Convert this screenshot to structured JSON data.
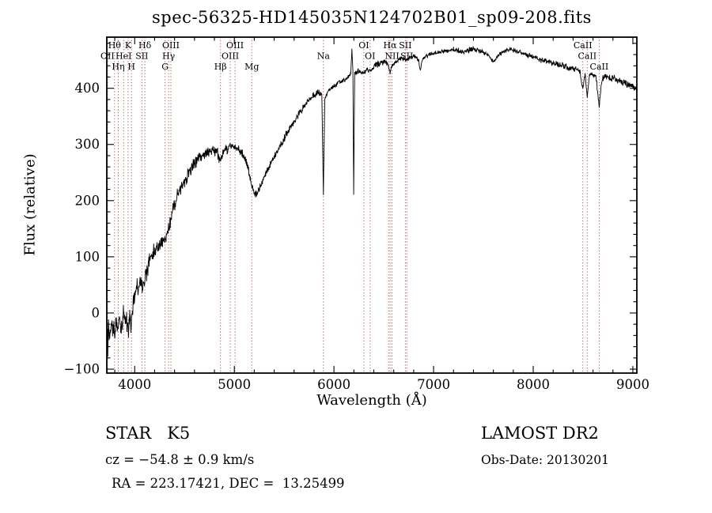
{
  "title": "spec-56325-HD145035N124702B01_sp09-208.fits",
  "footer": {
    "class_label": "STAR   K5",
    "survey": "LAMOST DR2",
    "cz": "cz = −54.8 ± 0.9 km/s",
    "obs_date": "Obs-Date: 20130201",
    "ra_dec": "RA = 223.17421, DEC =  13.25499"
  },
  "chart_data": {
    "type": "line",
    "title": "spec-56325-HD145035N124702B01_sp09-208.fits",
    "xlabel": "Wavelength (Å)",
    "ylabel": "Flux (relative)",
    "xlim": [
      3720,
      9040
    ],
    "ylim": [
      -107,
      491
    ],
    "grid": false,
    "line_color": "#000000",
    "marker_line_color": "#a34444",
    "x_ticks": {
      "major": [
        4000,
        5000,
        6000,
        7000,
        8000,
        9000
      ],
      "labels": [
        "4000",
        "5000",
        "6000",
        "7000",
        "8000",
        "9000"
      ],
      "minor_step": 200
    },
    "y_ticks": {
      "major": [
        -100,
        0,
        100,
        200,
        300,
        400
      ],
      "labels": [
        "−100",
        "0",
        "100",
        "200",
        "300",
        "400"
      ],
      "minor_step": 20
    },
    "spectral_lines": [
      {
        "label": "Hθ",
        "wavelength": 3798,
        "row": 1
      },
      {
        "label": "K",
        "wavelength": 3934,
        "row": 1
      },
      {
        "label": "Hδ",
        "wavelength": 4102,
        "row": 1
      },
      {
        "label": "OIII",
        "wavelength": 4363,
        "row": 1
      },
      {
        "label": "OIII",
        "wavelength": 5007,
        "row": 1
      },
      {
        "label": "OI",
        "wavelength": 6300,
        "row": 1
      },
      {
        "label": "Hα",
        "wavelength": 6563,
        "row": 1
      },
      {
        "label": "SII",
        "wavelength": 6716,
        "row": 1
      },
      {
        "label": "CaII",
        "wavelength": 8498,
        "row": 1
      },
      {
        "label": "OII",
        "wavelength": 3727,
        "row": 2
      },
      {
        "label": "HeI",
        "wavelength": 3889,
        "row": 2
      },
      {
        "label": "SII",
        "wavelength": 4072,
        "row": 2
      },
      {
        "label": "Hγ",
        "wavelength": 4340,
        "row": 2
      },
      {
        "label": "OIII",
        "wavelength": 4959,
        "row": 2
      },
      {
        "label": "Na",
        "wavelength": 5894,
        "row": 2
      },
      {
        "label": "OI",
        "wavelength": 6363,
        "row": 2
      },
      {
        "label": "NII",
        "wavelength": 6583,
        "row": 2
      },
      {
        "label": "SII",
        "wavelength": 6731,
        "row": 2
      },
      {
        "label": "CaII",
        "wavelength": 8542,
        "row": 2
      },
      {
        "label": "Hη",
        "wavelength": 3835,
        "row": 3
      },
      {
        "label": "H",
        "wavelength": 3968,
        "row": 3
      },
      {
        "label": "G",
        "wavelength": 4305,
        "row": 3
      },
      {
        "label": "Hβ",
        "wavelength": 4861,
        "row": 3
      },
      {
        "label": "Mg",
        "wavelength": 5175,
        "row": 3
      },
      {
        "label": "CaII",
        "wavelength": 8662,
        "row": 3
      },
      {
        "label": "",
        "wavelength": 6548,
        "row": 2
      }
    ],
    "series": [
      {
        "name": "spectrum",
        "point_format": "[wavelength_A, flux_relative, noise_amplitude]",
        "anchors": [
          [
            3690,
            -10,
            36
          ],
          [
            3698,
            -60,
            38
          ],
          [
            3706,
            -25,
            40
          ],
          [
            3714,
            -55,
            40
          ],
          [
            3722,
            -20,
            40
          ],
          [
            3730,
            -50,
            38
          ],
          [
            3740,
            -15,
            36
          ],
          [
            3750,
            -40,
            36
          ],
          [
            3762,
            -18,
            34
          ],
          [
            3775,
            -42,
            34
          ],
          [
            3788,
            -15,
            32
          ],
          [
            3798,
            -38,
            32
          ],
          [
            3810,
            -8,
            30
          ],
          [
            3822,
            -30,
            30
          ],
          [
            3835,
            -28,
            30
          ],
          [
            3848,
            2,
            28
          ],
          [
            3862,
            -22,
            28
          ],
          [
            3875,
            -12,
            28
          ],
          [
            3889,
            0,
            26
          ],
          [
            3902,
            -18,
            26
          ],
          [
            3916,
            -5,
            26
          ],
          [
            3934,
            -32,
            24
          ],
          [
            3950,
            -8,
            24
          ],
          [
            3968,
            -18,
            24
          ],
          [
            3984,
            22,
            24
          ],
          [
            4000,
            34,
            22
          ],
          [
            4018,
            48,
            22
          ],
          [
            4036,
            40,
            22
          ],
          [
            4054,
            52,
            21
          ],
          [
            4072,
            48,
            21
          ],
          [
            4088,
            58,
            20
          ],
          [
            4102,
            52,
            20
          ],
          [
            4120,
            72,
            20
          ],
          [
            4145,
            92,
            20
          ],
          [
            4170,
            104,
            20
          ],
          [
            4200,
            112,
            19
          ],
          [
            4230,
            116,
            18
          ],
          [
            4260,
            122,
            18
          ],
          [
            4285,
            128,
            18
          ],
          [
            4305,
            126,
            18
          ],
          [
            4330,
            148,
            17
          ],
          [
            4363,
            168,
            16
          ],
          [
            4400,
            194,
            16
          ],
          [
            4440,
            214,
            15
          ],
          [
            4480,
            229,
            15
          ],
          [
            4520,
            241,
            14
          ],
          [
            4560,
            254,
            14
          ],
          [
            4600,
            266,
            13
          ],
          [
            4650,
            276,
            13
          ],
          [
            4700,
            282,
            12
          ],
          [
            4750,
            286,
            12
          ],
          [
            4800,
            289,
            12
          ],
          [
            4832,
            284,
            11
          ],
          [
            4861,
            271,
            11
          ],
          [
            4890,
            287,
            11
          ],
          [
            4925,
            292,
            11
          ],
          [
            4960,
            296,
            10
          ],
          [
            5000,
            295,
            10
          ],
          [
            5040,
            291,
            10
          ],
          [
            5080,
            285,
            10
          ],
          [
            5120,
            271,
            10
          ],
          [
            5155,
            243,
            9
          ],
          [
            5185,
            219,
            9
          ],
          [
            5215,
            212,
            9
          ],
          [
            5255,
            221,
            9
          ],
          [
            5300,
            241,
            9
          ],
          [
            5350,
            261,
            9
          ],
          [
            5400,
            277,
            8
          ],
          [
            5450,
            295,
            8
          ],
          [
            5500,
            311,
            8
          ],
          [
            5550,
            327,
            8
          ],
          [
            5600,
            341,
            8
          ],
          [
            5650,
            355,
            7
          ],
          [
            5700,
            368,
            7
          ],
          [
            5750,
            379,
            7
          ],
          [
            5800,
            388,
            7
          ],
          [
            5845,
            393,
            7
          ],
          [
            5878,
            391,
            5
          ],
          [
            5894,
            212,
            3
          ],
          [
            5908,
            379,
            5
          ],
          [
            5940,
            394,
            6
          ],
          [
            5980,
            401,
            6
          ],
          [
            6020,
            406,
            6
          ],
          [
            6060,
            411,
            6
          ],
          [
            6100,
            415,
            6
          ],
          [
            6140,
            419,
            6
          ],
          [
            6168,
            426,
            5
          ],
          [
            6180,
            468,
            4
          ],
          [
            6190,
            429,
            4
          ],
          [
            6198,
            210,
            3
          ],
          [
            6208,
            427,
            5
          ],
          [
            6240,
            431,
            6
          ],
          [
            6270,
            429,
            6
          ],
          [
            6300,
            426,
            6
          ],
          [
            6330,
            432,
            6
          ],
          [
            6363,
            429,
            6
          ],
          [
            6400,
            439,
            8
          ],
          [
            6440,
            443,
            9
          ],
          [
            6480,
            447,
            7
          ],
          [
            6520,
            447,
            6
          ],
          [
            6548,
            439,
            5
          ],
          [
            6563,
            427,
            5
          ],
          [
            6583,
            441,
            5
          ],
          [
            6620,
            449,
            6
          ],
          [
            6660,
            452,
            6
          ],
          [
            6700,
            454,
            5
          ],
          [
            6731,
            451,
            5
          ],
          [
            6770,
            456,
            5
          ],
          [
            6810,
            458,
            5
          ],
          [
            6850,
            449,
            5
          ],
          [
            6867,
            431,
            4
          ],
          [
            6885,
            451,
            5
          ],
          [
            6920,
            457,
            5
          ],
          [
            6960,
            460,
            5
          ],
          [
            7000,
            462,
            5
          ],
          [
            7050,
            464,
            5
          ],
          [
            7100,
            466,
            5
          ],
          [
            7150,
            467,
            5
          ],
          [
            7200,
            469,
            6
          ],
          [
            7250,
            467,
            6
          ],
          [
            7300,
            465,
            6
          ],
          [
            7350,
            468,
            6
          ],
          [
            7400,
            470,
            6
          ],
          [
            7450,
            467,
            5
          ],
          [
            7500,
            465,
            5
          ],
          [
            7550,
            459,
            5
          ],
          [
            7600,
            447,
            5
          ],
          [
            7640,
            455,
            5
          ],
          [
            7680,
            463,
            5
          ],
          [
            7720,
            467,
            5
          ],
          [
            7760,
            469,
            5
          ],
          [
            7800,
            468,
            5
          ],
          [
            7850,
            465,
            5
          ],
          [
            7900,
            462,
            5
          ],
          [
            7950,
            459,
            5
          ],
          [
            8000,
            456,
            5
          ],
          [
            8060,
            452,
            6
          ],
          [
            8120,
            449,
            6
          ],
          [
            8180,
            446,
            7
          ],
          [
            8230,
            443,
            7
          ],
          [
            8280,
            441,
            7
          ],
          [
            8330,
            439,
            7
          ],
          [
            8380,
            437,
            7
          ],
          [
            8430,
            434,
            6
          ],
          [
            8470,
            429,
            5
          ],
          [
            8498,
            397,
            4
          ],
          [
            8520,
            427,
            5
          ],
          [
            8542,
            385,
            4
          ],
          [
            8565,
            425,
            5
          ],
          [
            8600,
            423,
            6
          ],
          [
            8630,
            421,
            6
          ],
          [
            8662,
            367,
            4
          ],
          [
            8690,
            417,
            6
          ],
          [
            8730,
            421,
            7
          ],
          [
            8770,
            417,
            7
          ],
          [
            8810,
            419,
            7
          ],
          [
            8850,
            414,
            8
          ],
          [
            8890,
            411,
            8
          ],
          [
            8930,
            409,
            8
          ],
          [
            8970,
            405,
            9
          ],
          [
            9000,
            402,
            9
          ],
          [
            9028,
            399,
            8
          ],
          [
            9048,
            394,
            7
          ],
          [
            9062,
            386,
            6
          ],
          [
            9072,
            352,
            5
          ],
          [
            9080,
            150,
            4
          ],
          [
            9086,
            6,
            3
          ]
        ]
      }
    ]
  }
}
